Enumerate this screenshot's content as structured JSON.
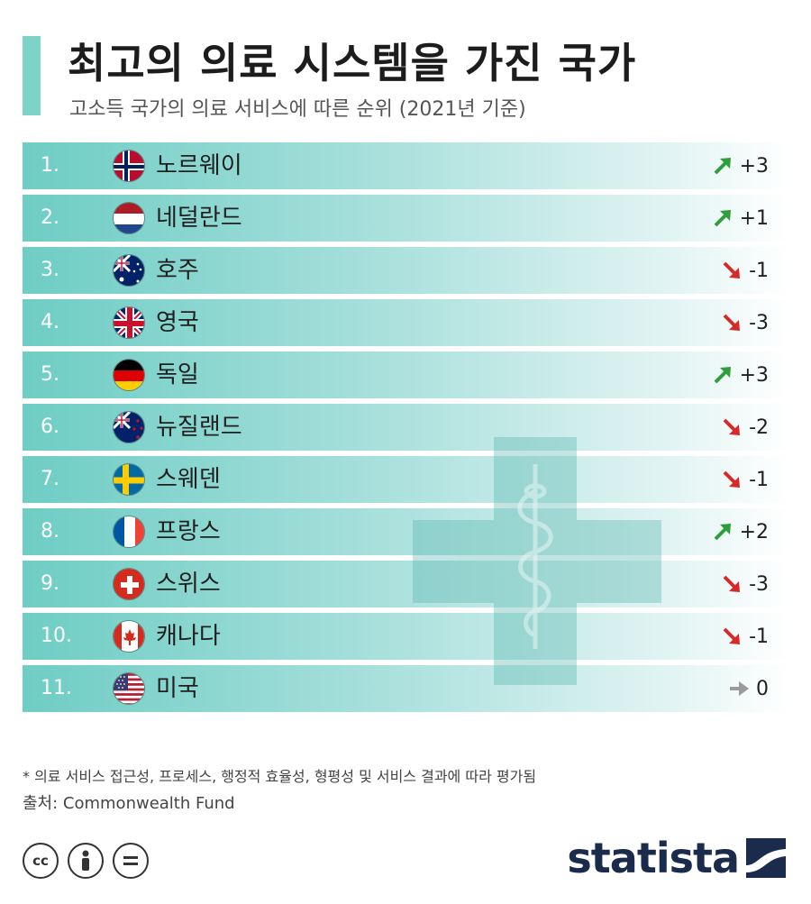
{
  "header": {
    "title": "최고의 의료 시스템을 가진 국가",
    "subtitle": "고소득 국가의 의료 서비스에 따른 순위 (2021년 기준)"
  },
  "chart_data": {
    "type": "table",
    "title": "최고의 의료 시스템을 가진 국가",
    "subtitle": "고소득 국가의 의료 서비스에 따른 순위 (2021년 기준)",
    "columns": [
      "rank",
      "country",
      "change"
    ],
    "rows": [
      {
        "rank": "1.",
        "country": "노르웨이",
        "change": "+3",
        "trend": "up",
        "flag": "norway"
      },
      {
        "rank": "2.",
        "country": "네덜란드",
        "change": "+1",
        "trend": "up",
        "flag": "netherlands"
      },
      {
        "rank": "3.",
        "country": "호주",
        "change": "-1",
        "trend": "down",
        "flag": "australia"
      },
      {
        "rank": "4.",
        "country": "영국",
        "change": "-3",
        "trend": "down",
        "flag": "uk"
      },
      {
        "rank": "5.",
        "country": "독일",
        "change": "+3",
        "trend": "up",
        "flag": "germany"
      },
      {
        "rank": "6.",
        "country": "뉴질랜드",
        "change": "-2",
        "trend": "down",
        "flag": "newzealand"
      },
      {
        "rank": "7.",
        "country": "스웨덴",
        "change": "-1",
        "trend": "down",
        "flag": "sweden"
      },
      {
        "rank": "8.",
        "country": "프랑스",
        "change": "+2",
        "trend": "up",
        "flag": "france"
      },
      {
        "rank": "9.",
        "country": "스위스",
        "change": "-3",
        "trend": "down",
        "flag": "switzerland"
      },
      {
        "rank": "10.",
        "country": "캐나다",
        "change": "-1",
        "trend": "down",
        "flag": "canada"
      },
      {
        "rank": "11.",
        "country": "미국",
        "change": "0",
        "trend": "flat",
        "flag": "usa"
      }
    ]
  },
  "colors": {
    "accent": "#7ed3c9",
    "up": "#2e9e3a",
    "down": "#d42a2a",
    "flat": "#9a9a9a",
    "brand": "#1a2b4c"
  },
  "footer": {
    "footnote": "* 의료 서비스 접근성, 프로세스, 행정적 효율성, 형평성 및 서비스 결과에 따라 평가됨",
    "source": "출처: Commonwealth Fund",
    "license_icons": [
      "cc-icon",
      "person-icon",
      "equals-icon"
    ],
    "brand": "statista"
  }
}
